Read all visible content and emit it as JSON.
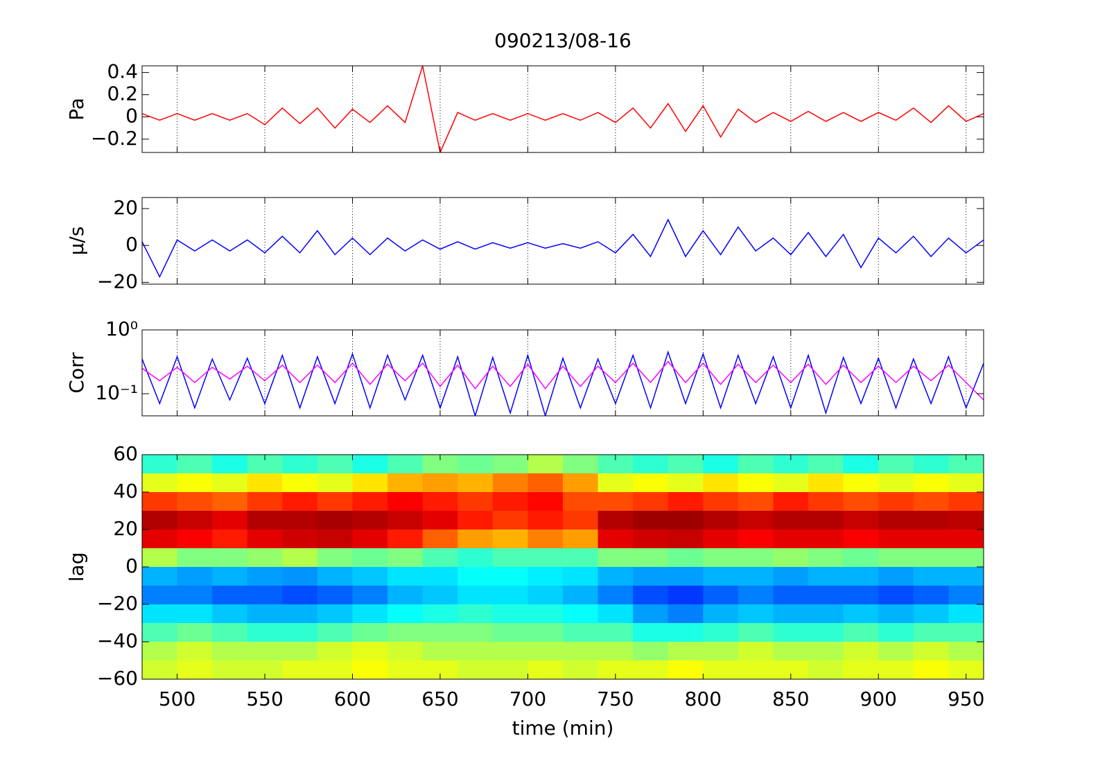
{
  "chart_data": [
    {
      "type": "line",
      "title": "090213/08-16",
      "ylabel": "Pa",
      "xlim": [
        480,
        960
      ],
      "xticks": [
        500,
        550,
        600,
        650,
        700,
        750,
        800,
        850,
        900,
        950
      ],
      "ylim": [
        -0.32,
        0.46
      ],
      "yticks": [
        {
          "value": -0.2,
          "label": "−0.2"
        },
        0,
        0.2,
        0.4
      ],
      "grid": "x",
      "x": [
        480,
        490,
        500,
        510,
        520,
        530,
        540,
        550,
        560,
        570,
        580,
        590,
        600,
        610,
        620,
        630,
        640,
        650,
        660,
        670,
        680,
        690,
        700,
        710,
        720,
        730,
        740,
        750,
        760,
        770,
        780,
        790,
        800,
        810,
        820,
        830,
        840,
        850,
        860,
        870,
        880,
        890,
        900,
        910,
        920,
        930,
        940,
        950,
        960
      ],
      "series": [
        {
          "color": "#ff0000",
          "values": [
            0.03,
            -0.03,
            0.03,
            -0.03,
            0.03,
            -0.03,
            0.03,
            -0.07,
            0.08,
            -0.06,
            0.08,
            -0.1,
            0.07,
            -0.05,
            0.1,
            -0.05,
            0.46,
            -0.32,
            0.04,
            -0.03,
            0.03,
            -0.03,
            0.03,
            -0.03,
            0.03,
            -0.03,
            0.04,
            -0.05,
            0.08,
            -0.1,
            0.12,
            -0.13,
            0.1,
            -0.18,
            0.07,
            -0.05,
            0.04,
            -0.04,
            0.05,
            -0.04,
            0.04,
            -0.04,
            0.04,
            -0.03,
            0.08,
            -0.05,
            0.1,
            -0.04,
            0.03
          ]
        }
      ]
    },
    {
      "type": "line",
      "ylabel": "μ/s",
      "xlim": [
        480,
        960
      ],
      "xticks": [
        500,
        550,
        600,
        650,
        700,
        750,
        800,
        850,
        900,
        950
      ],
      "ylim": [
        -21,
        26
      ],
      "yticks": [
        {
          "value": -20,
          "label": "−20"
        },
        0,
        20
      ],
      "grid": "x",
      "x": [
        480,
        490,
        500,
        510,
        520,
        530,
        540,
        550,
        560,
        570,
        580,
        590,
        600,
        610,
        620,
        630,
        640,
        650,
        660,
        670,
        680,
        690,
        700,
        710,
        720,
        730,
        740,
        750,
        760,
        770,
        780,
        790,
        800,
        810,
        820,
        830,
        840,
        850,
        860,
        870,
        880,
        890,
        900,
        910,
        920,
        930,
        940,
        950,
        960
      ],
      "series": [
        {
          "color": "#0000ff",
          "values": [
            2,
            -17,
            3,
            -3,
            3,
            -3,
            3,
            -4,
            5,
            -4,
            8,
            -5,
            4,
            -5,
            4,
            -3,
            3,
            -2,
            2,
            -2,
            1.5,
            -1.5,
            1.5,
            -1.5,
            1,
            -1.5,
            2,
            -4,
            6,
            -6,
            14,
            -6,
            8,
            -5,
            10,
            -3,
            4,
            -5,
            7,
            -6,
            6,
            -12,
            4,
            -4,
            5,
            -6,
            4,
            -4,
            3
          ]
        }
      ]
    },
    {
      "type": "line",
      "ylabel": "Corr",
      "yscale": "log",
      "xlim": [
        480,
        960
      ],
      "xticks": [
        500,
        550,
        600,
        650,
        700,
        750,
        800,
        850,
        900,
        950
      ],
      "ylim": [
        0.045,
        1
      ],
      "yticks": [
        {
          "value": 0.1,
          "label": "10⁻¹"
        },
        {
          "value": 1,
          "label": "10⁰"
        }
      ],
      "grid": "x",
      "x": [
        480,
        490,
        500,
        510,
        520,
        530,
        540,
        550,
        560,
        570,
        580,
        590,
        600,
        610,
        620,
        630,
        640,
        650,
        660,
        670,
        680,
        690,
        700,
        710,
        720,
        730,
        740,
        750,
        760,
        770,
        780,
        790,
        800,
        810,
        820,
        830,
        840,
        850,
        860,
        870,
        880,
        890,
        900,
        910,
        920,
        930,
        940,
        950,
        960
      ],
      "series": [
        {
          "color": "#0000ff",
          "values": [
            0.35,
            0.07,
            0.38,
            0.06,
            0.35,
            0.08,
            0.36,
            0.07,
            0.4,
            0.06,
            0.38,
            0.07,
            0.42,
            0.06,
            0.4,
            0.08,
            0.4,
            0.06,
            0.38,
            0.045,
            0.37,
            0.05,
            0.4,
            0.045,
            0.36,
            0.06,
            0.35,
            0.07,
            0.4,
            0.06,
            0.45,
            0.07,
            0.42,
            0.06,
            0.4,
            0.07,
            0.38,
            0.06,
            0.4,
            0.05,
            0.37,
            0.07,
            0.36,
            0.06,
            0.35,
            0.07,
            0.38,
            0.06,
            0.3
          ]
        },
        {
          "color": "#ff00ff",
          "values": [
            0.25,
            0.16,
            0.26,
            0.15,
            0.26,
            0.17,
            0.27,
            0.16,
            0.28,
            0.15,
            0.28,
            0.15,
            0.3,
            0.14,
            0.29,
            0.16,
            0.3,
            0.13,
            0.28,
            0.12,
            0.27,
            0.13,
            0.29,
            0.12,
            0.27,
            0.13,
            0.27,
            0.15,
            0.3,
            0.15,
            0.32,
            0.15,
            0.3,
            0.14,
            0.29,
            0.15,
            0.28,
            0.15,
            0.29,
            0.14,
            0.28,
            0.15,
            0.27,
            0.15,
            0.27,
            0.16,
            0.28,
            0.15,
            0.08
          ]
        }
      ]
    },
    {
      "type": "heatmap",
      "ylabel": "lag",
      "xlabel": "time (min)",
      "colormap": "jet",
      "zlim": [
        0,
        1
      ],
      "xlim": [
        480,
        960
      ],
      "xticks": [
        500,
        550,
        600,
        650,
        700,
        750,
        800,
        850,
        900,
        950
      ],
      "ylim": [
        -60,
        60
      ],
      "yticks": [
        {
          "value": -60,
          "label": "−60"
        },
        {
          "value": -40,
          "label": "−40"
        },
        {
          "value": -20,
          "label": "−20"
        },
        0,
        20,
        40,
        60
      ],
      "x": [
        490,
        510,
        530,
        550,
        570,
        590,
        610,
        630,
        650,
        670,
        690,
        710,
        730,
        750,
        770,
        790,
        810,
        830,
        850,
        870,
        890,
        910,
        930,
        950
      ],
      "y": [
        55,
        45,
        35,
        25,
        15,
        5,
        -5,
        -15,
        -25,
        -35,
        -45,
        -55
      ],
      "z": [
        [
          0.42,
          0.45,
          0.4,
          0.45,
          0.42,
          0.45,
          0.4,
          0.45,
          0.5,
          0.48,
          0.5,
          0.55,
          0.5,
          0.45,
          0.42,
          0.45,
          0.4,
          0.45,
          0.42,
          0.45,
          0.4,
          0.45,
          0.42,
          0.45
        ],
        [
          0.6,
          0.62,
          0.6,
          0.65,
          0.62,
          0.6,
          0.65,
          0.7,
          0.72,
          0.7,
          0.75,
          0.78,
          0.72,
          0.6,
          0.62,
          0.6,
          0.65,
          0.62,
          0.6,
          0.65,
          0.62,
          0.6,
          0.62,
          0.6
        ],
        [
          0.82,
          0.8,
          0.78,
          0.82,
          0.85,
          0.82,
          0.85,
          0.88,
          0.85,
          0.82,
          0.85,
          0.87,
          0.8,
          0.8,
          0.82,
          0.85,
          0.82,
          0.8,
          0.85,
          0.82,
          0.8,
          0.82,
          0.8,
          0.82
        ],
        [
          0.95,
          0.93,
          0.9,
          0.95,
          0.95,
          0.96,
          0.95,
          0.93,
          0.9,
          0.85,
          0.82,
          0.85,
          0.82,
          0.95,
          0.97,
          0.97,
          0.95,
          0.93,
          0.95,
          0.95,
          0.93,
          0.95,
          0.95,
          0.94
        ],
        [
          0.9,
          0.88,
          0.85,
          0.9,
          0.92,
          0.93,
          0.9,
          0.85,
          0.78,
          0.72,
          0.7,
          0.75,
          0.72,
          0.9,
          0.92,
          0.93,
          0.9,
          0.88,
          0.9,
          0.9,
          0.88,
          0.9,
          0.9,
          0.9
        ],
        [
          0.55,
          0.5,
          0.5,
          0.52,
          0.55,
          0.5,
          0.48,
          0.5,
          0.45,
          0.42,
          0.45,
          0.45,
          0.45,
          0.5,
          0.5,
          0.48,
          0.5,
          0.5,
          0.52,
          0.5,
          0.48,
          0.5,
          0.5,
          0.5
        ],
        [
          0.3,
          0.28,
          0.3,
          0.28,
          0.27,
          0.3,
          0.32,
          0.35,
          0.35,
          0.38,
          0.38,
          0.36,
          0.35,
          0.3,
          0.28,
          0.28,
          0.3,
          0.3,
          0.28,
          0.3,
          0.3,
          0.28,
          0.3,
          0.3
        ],
        [
          0.25,
          0.25,
          0.22,
          0.22,
          0.2,
          0.22,
          0.25,
          0.3,
          0.32,
          0.35,
          0.35,
          0.33,
          0.3,
          0.25,
          0.2,
          0.18,
          0.22,
          0.25,
          0.22,
          0.22,
          0.22,
          0.2,
          0.22,
          0.25
        ],
        [
          0.35,
          0.35,
          0.32,
          0.3,
          0.3,
          0.32,
          0.35,
          0.38,
          0.4,
          0.42,
          0.4,
          0.4,
          0.38,
          0.35,
          0.28,
          0.25,
          0.3,
          0.32,
          0.3,
          0.3,
          0.32,
          0.3,
          0.32,
          0.35
        ],
        [
          0.45,
          0.48,
          0.45,
          0.42,
          0.42,
          0.45,
          0.48,
          0.5,
          0.5,
          0.5,
          0.48,
          0.48,
          0.45,
          0.45,
          0.4,
          0.4,
          0.42,
          0.45,
          0.42,
          0.42,
          0.45,
          0.42,
          0.45,
          0.45
        ],
        [
          0.55,
          0.58,
          0.55,
          0.55,
          0.55,
          0.58,
          0.6,
          0.58,
          0.55,
          0.55,
          0.55,
          0.55,
          0.55,
          0.55,
          0.52,
          0.55,
          0.55,
          0.58,
          0.55,
          0.55,
          0.58,
          0.55,
          0.58,
          0.55
        ],
        [
          0.58,
          0.6,
          0.58,
          0.58,
          0.6,
          0.6,
          0.62,
          0.6,
          0.6,
          0.58,
          0.58,
          0.6,
          0.58,
          0.6,
          0.6,
          0.62,
          0.6,
          0.6,
          0.6,
          0.58,
          0.6,
          0.6,
          0.62,
          0.6
        ]
      ]
    }
  ]
}
